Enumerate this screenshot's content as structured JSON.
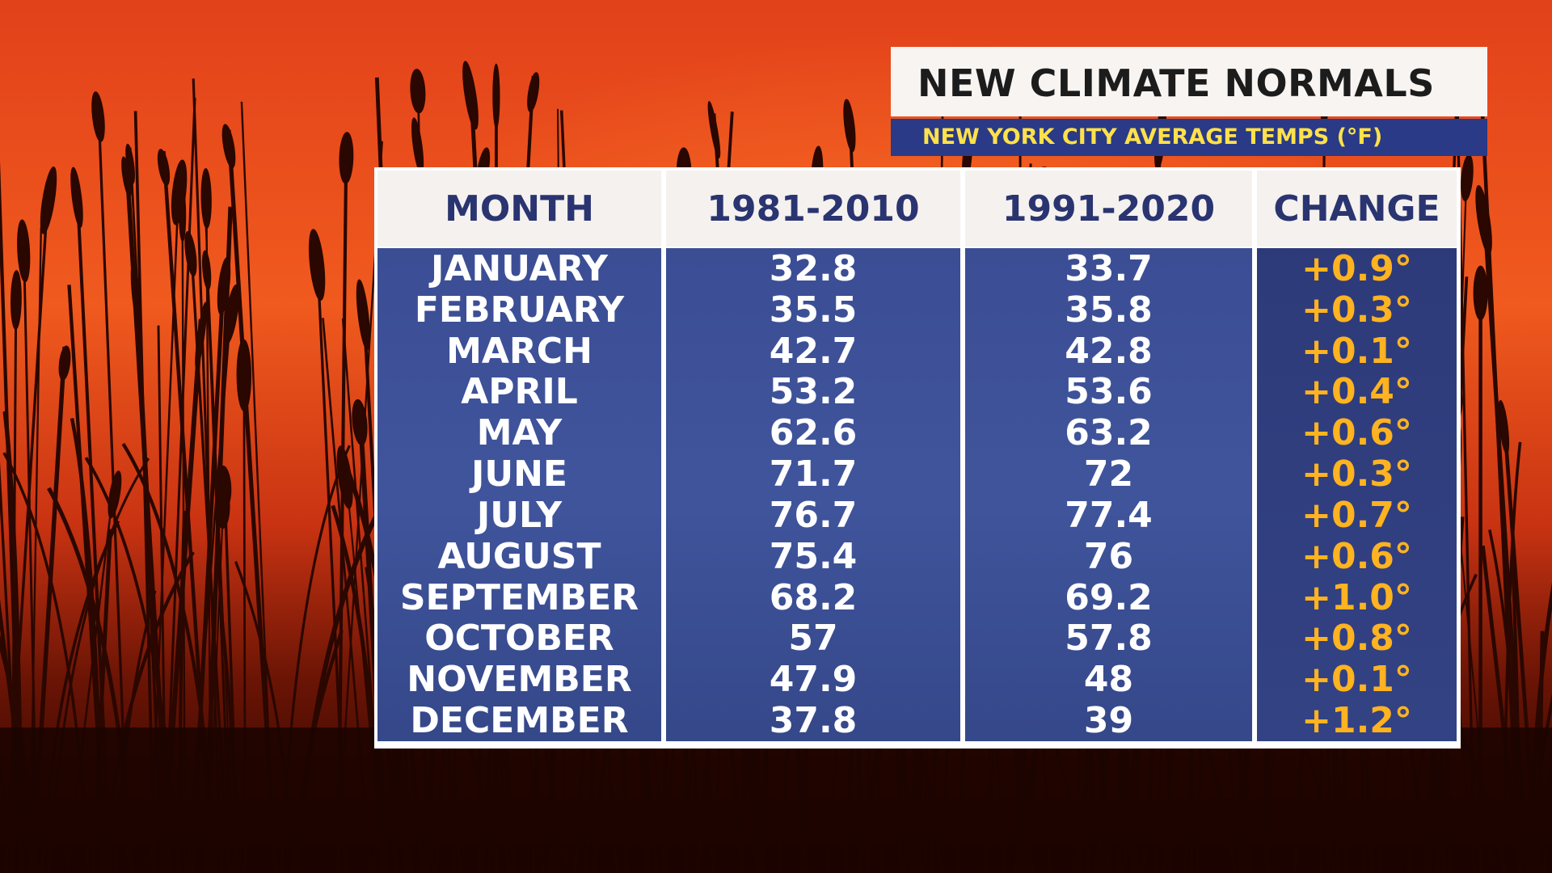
{
  "title": "NEW CLIMATE NORMALS",
  "subtitle": "NEW YORK CITY AVERAGE TEMPS (°F)",
  "colors": {
    "sky_top": "#e8471a",
    "sky_bottom": "#2b0700",
    "panel_blue": "#2e4590",
    "header_text": "#2a3470",
    "change_text": "#ffb320",
    "subtitle_text": "#ffe14a"
  },
  "chart_data": {
    "type": "table",
    "columns": [
      "MONTH",
      "1981-2010",
      "1991-2020",
      "CHANGE"
    ],
    "rows": [
      {
        "month": "JANUARY",
        "old": "32.8",
        "new": "33.7",
        "change": "+0.9°"
      },
      {
        "month": "FEBRUARY",
        "old": "35.5",
        "new": "35.8",
        "change": "+0.3°"
      },
      {
        "month": "MARCH",
        "old": "42.7",
        "new": "42.8",
        "change": "+0.1°"
      },
      {
        "month": "APRIL",
        "old": "53.2",
        "new": "53.6",
        "change": "+0.4°"
      },
      {
        "month": "MAY",
        "old": "62.6",
        "new": "63.2",
        "change": "+0.6°"
      },
      {
        "month": "JUNE",
        "old": "71.7",
        "new": "72",
        "change": "+0.3°"
      },
      {
        "month": "JULY",
        "old": "76.7",
        "new": "77.4",
        "change": "+0.7°"
      },
      {
        "month": "AUGUST",
        "old": "75.4",
        "new": "76",
        "change": "+0.6°"
      },
      {
        "month": "SEPTEMBER",
        "old": "68.2",
        "new": "69.2",
        "change": "+1.0°"
      },
      {
        "month": "OCTOBER",
        "old": "57",
        "new": "57.8",
        "change": "+0.8°"
      },
      {
        "month": "NOVEMBER",
        "old": "47.9",
        "new": "48",
        "change": "+0.1°"
      },
      {
        "month": "DECEMBER",
        "old": "37.8",
        "new": "39",
        "change": "+1.2°"
      }
    ]
  }
}
